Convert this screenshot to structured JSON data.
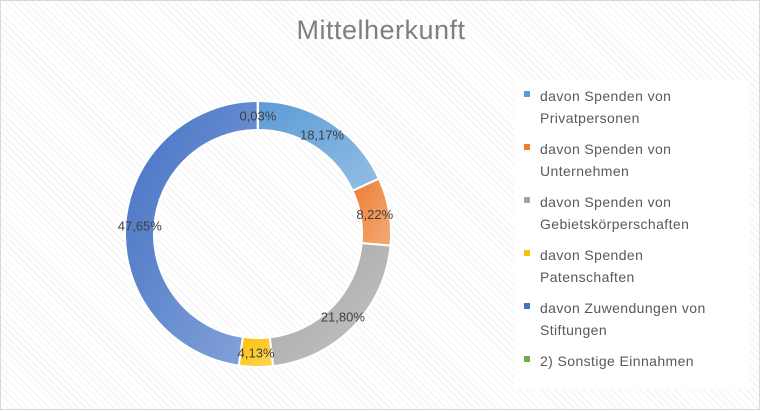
{
  "chart_data": {
    "type": "pie",
    "subtype": "doughnut",
    "title": "Mittelherkunft",
    "legend_position": "right",
    "grid": false,
    "slices": [
      {
        "label": "davon Spenden von\nPrivatpersonen",
        "value": 18.17,
        "display": "18,17%",
        "color": "#5b9bd5"
      },
      {
        "label": "davon Spenden von\nUnternehmen",
        "value": 8.22,
        "display": "8,22%",
        "color": "#ed7d31"
      },
      {
        "label": "davon Spenden von\nGebietskörperschaften",
        "value": 21.8,
        "display": "21,80%",
        "color": "#a5a5a5"
      },
      {
        "label": "davon Spenden\nPatenschaften",
        "value": 4.13,
        "display": "4,13%",
        "color": "#ffc000"
      },
      {
        "label": "davon Zuwendungen von\nStiftungen",
        "value": 47.65,
        "display": "47,65%",
        "color": "#4472c4"
      },
      {
        "label": "2) Sonstige Einnahmen",
        "value": 0.03,
        "display": "0,03%",
        "color": "#70ad47"
      }
    ]
  }
}
